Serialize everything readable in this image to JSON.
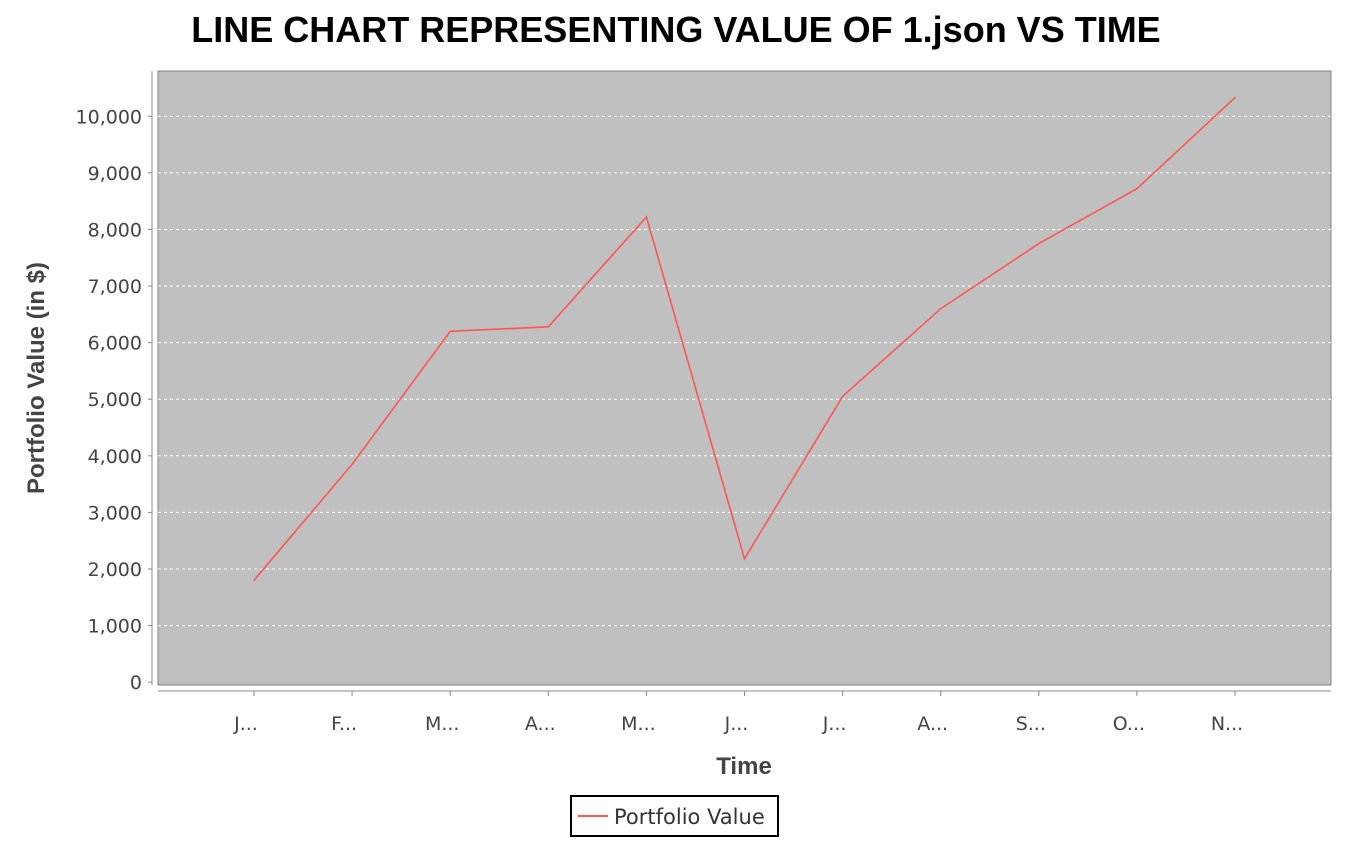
{
  "chart_data": {
    "type": "line",
    "title": "LINE CHART REPRESENTING VALUE OF 1.json VS TIME",
    "xlabel": "Time",
    "ylabel": "Portfolio Value (in $)",
    "categories": [
      "J...",
      "F...",
      "M...",
      "A...",
      "M...",
      "J...",
      "J...",
      "A...",
      "S...",
      "O...",
      "N..."
    ],
    "series": [
      {
        "name": "Portfolio Value",
        "color": "#ff5555",
        "values": [
          1800,
          3850,
          6200,
          6280,
          8220,
          2180,
          5050,
          6600,
          7750,
          8720,
          10330
        ]
      }
    ],
    "ylim": [
      -50,
      10800
    ],
    "yticks": [
      0,
      1000,
      2000,
      3000,
      4000,
      5000,
      6000,
      7000,
      8000,
      9000,
      10000
    ],
    "yticklabels": [
      "0",
      "1,000",
      "2,000",
      "3,000",
      "4,000",
      "5,000",
      "6,000",
      "7,000",
      "8,000",
      "9,000",
      "10,000"
    ],
    "grid": true,
    "legend_position": "bottom-center",
    "plot_background": "#c0c0c0",
    "grid_color": "#ffffff"
  }
}
